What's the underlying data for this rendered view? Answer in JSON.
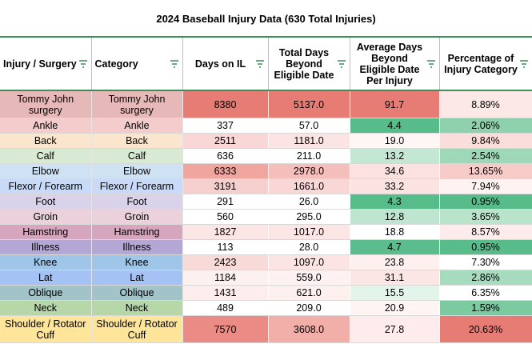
{
  "title": "2024 Baseball Injury Data (630 Total Injuries)",
  "columns": [
    "Injury / Surgery",
    "Category",
    "Days on IL",
    "Total Days Beyond Eligible Date",
    "Average Days Beyond Eligible Date Per Injury",
    "Percentage of Injury Category"
  ],
  "filter_icon": "filter-icon",
  "rows": [
    {
      "injury": "Tommy John surgery",
      "category": "Tommy John surgery",
      "days": "8380",
      "total": "5137.0",
      "avg": "91.7",
      "pct": "8.89%",
      "label_color": "#e6b8b7",
      "days_color": "#e67c73",
      "total_color": "#e67c73",
      "avg_color": "#e67c73",
      "pct_color": "#fce8e6",
      "tall": true
    },
    {
      "injury": "Ankle",
      "category": "Ankle",
      "days": "337",
      "total": "57.0",
      "avg": "4.4",
      "pct": "2.06%",
      "label_color": "#f4cccc",
      "days_color": "#ffffff",
      "total_color": "#ffffff",
      "avg_color": "#57bb8a",
      "pct_color": "#8fd1ad"
    },
    {
      "injury": "Back",
      "category": "Back",
      "days": "2511",
      "total": "1181.0",
      "avg": "19.0",
      "pct": "9.84%",
      "label_color": "#fce5cd",
      "days_color": "#f8d7d6",
      "total_color": "#fbe4e3",
      "avg_color": "#fef7f6",
      "pct_color": "#fbdedc"
    },
    {
      "injury": "Calf",
      "category": "Calf",
      "days": "636",
      "total": "211.0",
      "avg": "13.2",
      "pct": "2.54%",
      "label_color": "#d9ead3",
      "days_color": "#ffffff",
      "total_color": "#ffffff",
      "avg_color": "#c3e7d3",
      "pct_color": "#9fd8b9"
    },
    {
      "injury": "Elbow",
      "category": "Elbow",
      "days": "6333",
      "total": "2978.0",
      "avg": "34.6",
      "pct": "13.65%",
      "label_color": "#cfe2f3",
      "days_color": "#f0a59f",
      "total_color": "#f4bfbb",
      "avg_color": "#fbe1df",
      "pct_color": "#f7cbc8"
    },
    {
      "injury": "Flexor / Forearm",
      "category": "Flexor / Forearm",
      "days": "3191",
      "total": "1661.0",
      "avg": "33.2",
      "pct": "7.94%",
      "label_color": "#c9daf8",
      "days_color": "#f6d0ce",
      "total_color": "#f8d7d6",
      "avg_color": "#fbe3e2",
      "pct_color": "#fef3f2"
    },
    {
      "injury": "Foot",
      "category": "Foot",
      "days": "291",
      "total": "26.0",
      "avg": "4.3",
      "pct": "0.95%",
      "label_color": "#d9d2e9",
      "days_color": "#ffffff",
      "total_color": "#ffffff",
      "avg_color": "#57bb8a",
      "pct_color": "#57bb8a"
    },
    {
      "injury": "Groin",
      "category": "Groin",
      "days": "560",
      "total": "295.0",
      "avg": "12.8",
      "pct": "3.65%",
      "label_color": "#ead1dc",
      "days_color": "#ffffff",
      "total_color": "#ffffff",
      "avg_color": "#bfe5d0",
      "pct_color": "#b9e3cb"
    },
    {
      "injury": "Hamstring",
      "category": "Hamstring",
      "days": "1827",
      "total": "1017.0",
      "avg": "18.8",
      "pct": "8.57%",
      "label_color": "#d5a6bd",
      "days_color": "#fbe6e5",
      "total_color": "#fbe6e5",
      "avg_color": "#ffffff",
      "pct_color": "#fdeceb"
    },
    {
      "injury": "Illness",
      "category": "Illness",
      "days": "113",
      "total": "28.0",
      "avg": "4.7",
      "pct": "0.95%",
      "label_color": "#b4a7d6",
      "days_color": "#ffffff",
      "total_color": "#ffffff",
      "avg_color": "#5bbd8d",
      "pct_color": "#57bb8a"
    },
    {
      "injury": "Knee",
      "category": "Knee",
      "days": "2423",
      "total": "1097.0",
      "avg": "23.8",
      "pct": "7.30%",
      "label_color": "#9fc5e8",
      "days_color": "#f8dad8",
      "total_color": "#fbe4e3",
      "avg_color": "#fdf0ef",
      "pct_color": "#ffffff"
    },
    {
      "injury": "Lat",
      "category": "Lat",
      "days": "1184",
      "total": "559.0",
      "avg": "31.1",
      "pct": "2.86%",
      "label_color": "#a4c2f4",
      "days_color": "#fdf1f0",
      "total_color": "#fdf2f1",
      "avg_color": "#fce6e5",
      "pct_color": "#a7dbbe"
    },
    {
      "injury": "Oblique",
      "category": "Oblique",
      "days": "1431",
      "total": "621.0",
      "avg": "15.5",
      "pct": "6.35%",
      "label_color": "#a2c4c9",
      "days_color": "#fdeeed",
      "total_color": "#fdf1f0",
      "avg_color": "#e3f4ea",
      "pct_color": "#ffffff"
    },
    {
      "injury": "Neck",
      "category": "Neck",
      "days": "489",
      "total": "209.0",
      "avg": "20.9",
      "pct": "1.59%",
      "label_color": "#b6d7a8",
      "days_color": "#ffffff",
      "total_color": "#ffffff",
      "avg_color": "#fef5f4",
      "pct_color": "#7ccaa0"
    },
    {
      "injury": "Shoulder / Rotator Cuff",
      "category": "Shoulder / Rotator Cuff",
      "days": "7570",
      "total": "3608.0",
      "avg": "27.8",
      "pct": "20.63%",
      "label_color": "#ffe599",
      "days_color": "#ea8c85",
      "total_color": "#f2aea9",
      "avg_color": "#fdeceb",
      "pct_color": "#e67c73",
      "tall": true
    }
  ]
}
